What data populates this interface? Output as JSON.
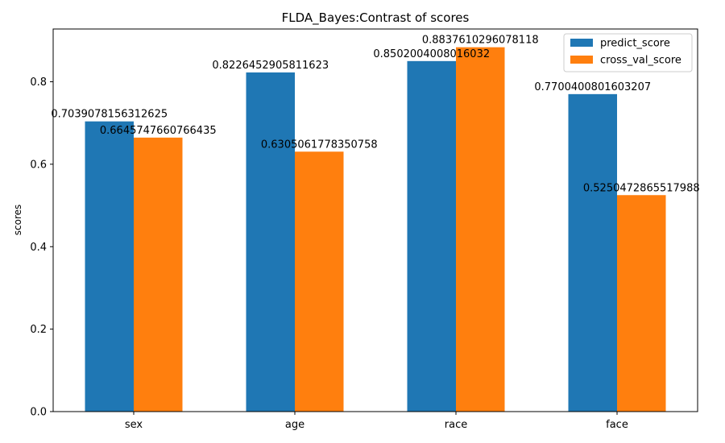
{
  "chart_data": {
    "type": "bar",
    "title": "FLDA_Bayes:Contrast of scores",
    "xlabel": "",
    "ylabel": "scores",
    "categories": [
      "sex",
      "age",
      "race",
      "face"
    ],
    "series": [
      {
        "name": "predict_score",
        "color": "#1f77b4",
        "values": [
          0.7039078156312625,
          0.8226452905811623,
          0.8502004008016032,
          0.7700400801603207
        ],
        "labels": [
          "0.7039078156312625",
          "0.8226452905811623",
          "0.8502004008016032",
          "0.7700400801603207"
        ]
      },
      {
        "name": "cross_val_score",
        "color": "#ff7f0e",
        "values": [
          0.6645747660766435,
          0.6305061778350758,
          0.8837610296078118,
          0.5250472865517988
        ],
        "labels": [
          "0.6645747660766435",
          "0.6305061778350758",
          "0.8837610296078118",
          "0.5250472865517988"
        ]
      }
    ],
    "ylim": [
      0,
      0.928
    ],
    "yticks": [
      0.0,
      0.2,
      0.4,
      0.6,
      0.8
    ],
    "ytick_labels": [
      "0.0",
      "0.2",
      "0.4",
      "0.6",
      "0.8"
    ],
    "grid": false,
    "legend_position": "top-right"
  }
}
